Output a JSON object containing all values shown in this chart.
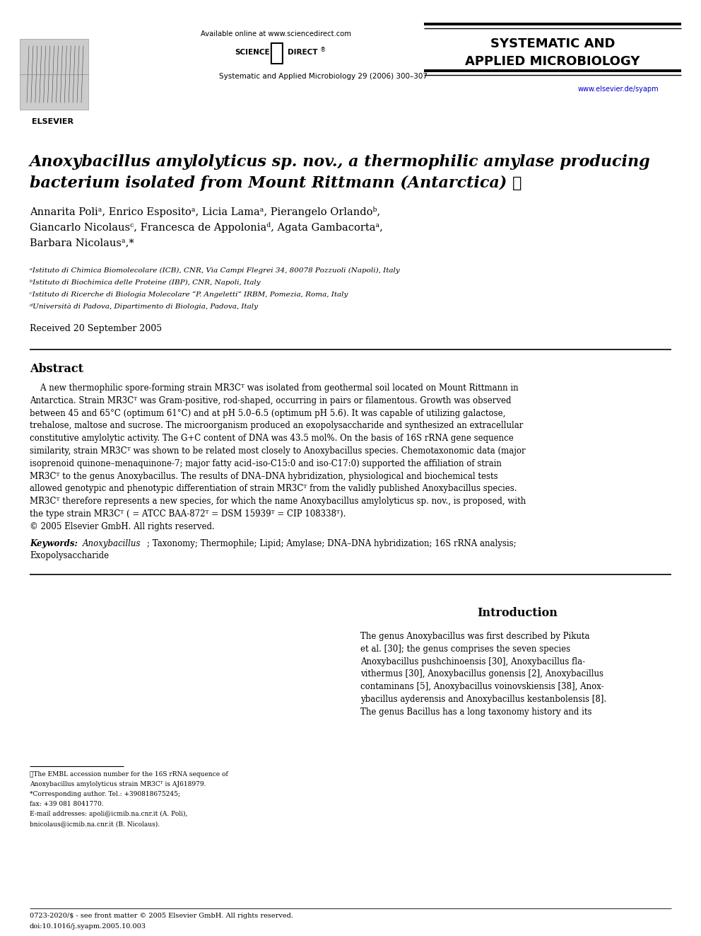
{
  "bg_color": "#ffffff",
  "header_online": "Available online at www.sciencedirect.com",
  "journal_name_line1": "SYSTEMATIC AND",
  "journal_name_line2": "APPLIED MICROBIOLOGY",
  "journal_ref": "Systematic and Applied Microbiology 29 (2006) 300–307",
  "website": "www.elsevier.de/syapm",
  "title_line1": "Anoxybacillus amylolyticus sp. nov., a thermophilic amylase producing",
  "title_line2": "bacterium isolated from Mount Rittmann (Antarctica) ☆",
  "authors_line1": "Annarita Poliᵃ, Enrico Espositoᵃ, Licia Lamaᵃ, Pierangelo Orlandoᵇ,",
  "authors_line2": "Giancarlo Nicolausᶜ, Francesca de Appoloniaᵈ, Agata Gambacortaᵃ,",
  "authors_line3": "Barbara Nicolausᵃ,*",
  "affiliation_a": "ᵃIstituto di Chimica Biomolecolare (ICB), CNR, Via Campi Flegrei 34, 80078 Pozzuoli (Napoli), Italy",
  "affiliation_b": "ᵇIstituto di Biochimica delle Proteine (IBP), CNR, Napoli, Italy",
  "affiliation_c": "ᶜIstituto di Ricerche di Biologia Molecolare “P. Angeletti” IRBM, Pomezia, Roma, Italy",
  "affiliation_d": "ᵈUniversità di Padova, Dipartimento di Biologia, Padova, Italy",
  "received": "Received 20 September 2005",
  "abstract_title": "Abstract",
  "abstract_lines": [
    "    A new thermophilic spore-forming strain MR3Cᵀ was isolated from geothermal soil located on Mount Rittmann in",
    "Antarctica. Strain MR3Cᵀ was Gram-positive, rod-shaped, occurring in pairs or filamentous. Growth was observed",
    "between 45 and 65°C (optimum 61°C) and at pH 5.0–6.5 (optimum pH 5.6). It was capable of utilizing galactose,",
    "trehalose, maltose and sucrose. The microorganism produced an exopolysaccharide and synthesized an extracellular",
    "constitutive amylolytic activity. The G+C content of DNA was 43.5 mol%. On the basis of 16S rRNA gene sequence",
    "similarity, strain MR3Cᵀ was shown to be related most closely to Anoxybacillus species. Chemotaxonomic data (major",
    "isoprenoid quinone–menaquinone-7; major fatty acid–iso-C15:0 and iso-C17:0) supported the affiliation of strain",
    "MR3Cᵀ to the genus Anoxybacillus. The results of DNA–DNA hybridization, physiological and biochemical tests",
    "allowed genotypic and phenotypic differentiation of strain MR3Cᵀ from the validly published Anoxybacillus species.",
    "MR3Cᵀ therefore represents a new species, for which the name Anoxybacillus amylolyticus sp. nov., is proposed, with",
    "the type strain MR3Cᵀ ( = ATCC BAA-872ᵀ = DSM 15939ᵀ = CIP 108338ᵀ).",
    "© 2005 Elsevier GmbH. All rights reserved."
  ],
  "keywords_label": "Keywords:",
  "keywords_italic": "Anoxybacillus",
  "keywords_rest": "; Taxonomy; Thermophile; Lipid; Amylase; DNA–DNA hybridization; 16S rRNA analysis;",
  "keywords_line2": "Exopolysaccharide",
  "intro_title": "Introduction",
  "intro_lines": [
    "The genus Anoxybacillus was first described by Pikuta",
    "et al. [30]; the genus comprises the seven species",
    "Anoxybacillus pushchinoensis [30], Anoxybacillus fla-",
    "vithermus [30], Anoxybacillus gonensis [2], Anoxybacillus",
    "contaminans [5], Anoxybacillus voinovskiensis [38], Anox-",
    "ybacillus ayderensis and Anoxybacillus kestanbolensis [8].",
    "The genus Bacillus has a long taxonomy history and its"
  ],
  "footnote_lines": [
    "⋆The EMBL accession number for the 16S rRNA sequence of",
    "Anoxybacillus amylolyticus strain MR3Cᵀ is AJ618979.",
    "*Corresponding author. Tel.: +390818675245;",
    "fax: +39 081 8041770.",
    "E-mail addresses: apoli@icmib.na.cnr.it (A. Poli),",
    "bnicolaus@icmib.na.cnr.it (B. Nicolaus)."
  ],
  "footer1": "0723-2020/$ - see front matter © 2005 Elsevier GmbH. All rights reserved.",
  "footer2": "doi:10.1016/j.syapm.2005.10.003"
}
